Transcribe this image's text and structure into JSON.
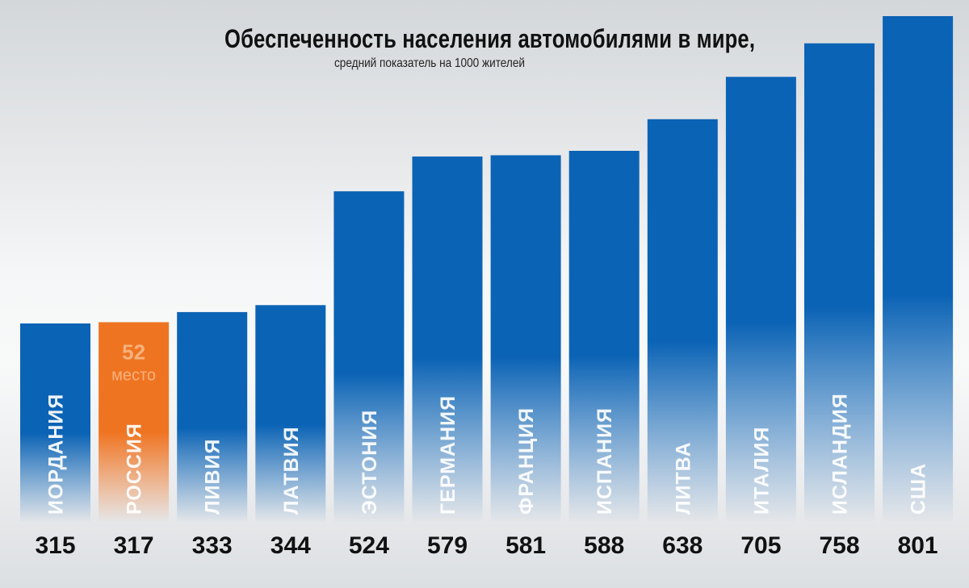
{
  "header": {
    "title": "Обеспеченность населения автомобилями в мире,",
    "subtitle": "средний показатель на 1000 жителей"
  },
  "highlight": {
    "category": "РОССИЯ",
    "rank_number": "52",
    "rank_word": "место"
  },
  "colors": {
    "bar": "#0b63b5",
    "bar_highlight": "#ef7422",
    "value_text": "#111111"
  },
  "chart_data": {
    "type": "bar",
    "title": "Обеспеченность населения автомобилями в мире,",
    "subtitle": "средний показатель на 1000 жителей",
    "categories": [
      "ИОРДАНИЯ",
      "РОССИЯ",
      "ЛИВИЯ",
      "ЛАТВИЯ",
      "ЭСТОНИЯ",
      "ГЕРМАНИЯ",
      "ФРАНЦИЯ",
      "ИСПАНИЯ",
      "ЛИТВА",
      "ИТАЛИЯ",
      "ИСЛАНДИЯ",
      "США"
    ],
    "values": [
      315,
      317,
      333,
      344,
      524,
      579,
      581,
      588,
      638,
      705,
      758,
      801
    ],
    "value_labels": [
      "315",
      "317",
      "333",
      "344",
      "524",
      "579",
      "581",
      "588",
      "638",
      "705",
      "758",
      "801"
    ],
    "xlabel": "",
    "ylabel": "",
    "ylim": [
      0,
      801
    ],
    "grid": false,
    "legend": "none"
  }
}
